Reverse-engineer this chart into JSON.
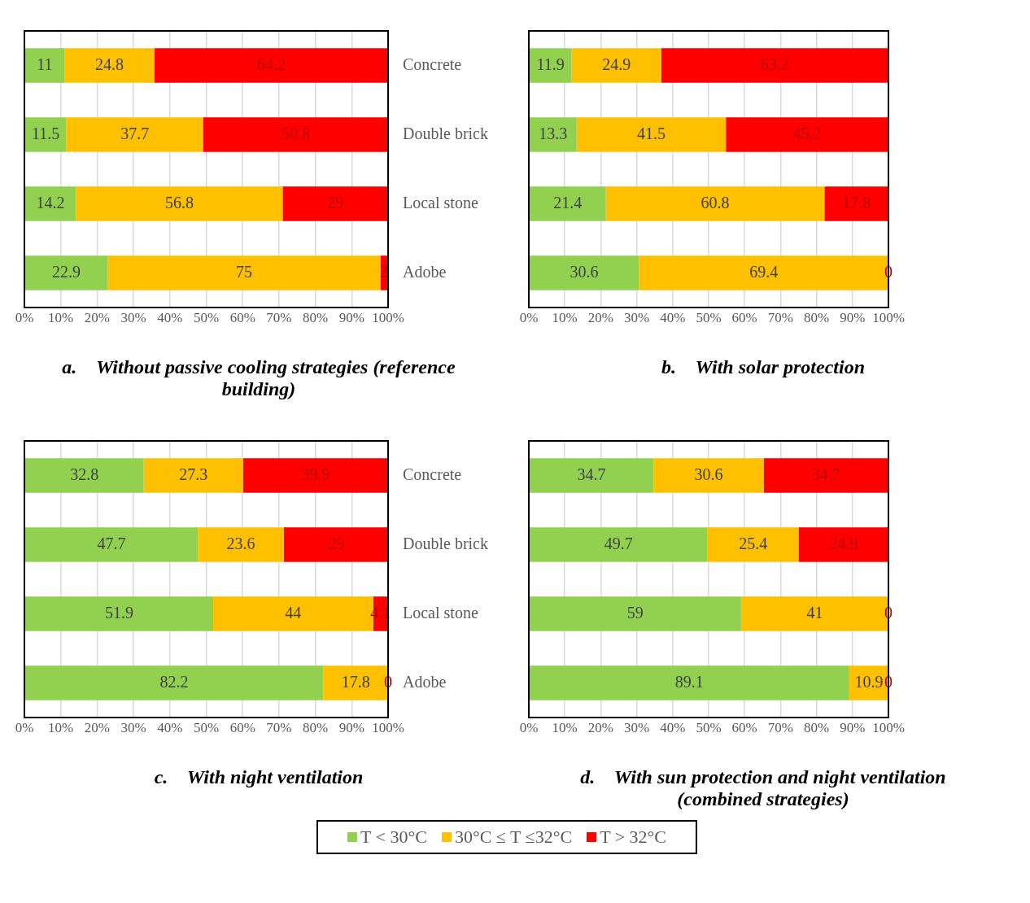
{
  "chart_data": [
    {
      "type": "bar",
      "orientation": "horizontal",
      "stacked": true,
      "title": "a.    Without passive cooling strategies (reference building)",
      "categories": [
        "Concrete",
        "Double brick",
        "Local stone",
        "Adobe"
      ],
      "series": [
        {
          "color": "#92d050",
          "values": [
            11,
            11.5,
            14.2,
            22.9
          ]
        },
        {
          "color": "#ffc000",
          "values": [
            24.8,
            37.7,
            56.8,
            75
          ]
        },
        {
          "color": "#ff0000",
          "values": [
            64.2,
            50.8,
            29,
            2
          ]
        }
      ],
      "xlim": [
        0,
        100
      ],
      "xticks": [
        {
          "value": 0,
          "label": "0%"
        },
        {
          "value": 10,
          "label": "10%"
        },
        {
          "value": 20,
          "label": "20%"
        },
        {
          "value": 30,
          "label": "30%"
        },
        {
          "value": 40,
          "label": "40%"
        },
        {
          "value": 50,
          "label": "50%"
        },
        {
          "value": 60,
          "label": "60%"
        },
        {
          "value": 70,
          "label": "70%"
        },
        {
          "value": 80,
          "label": "80%"
        },
        {
          "value": 90,
          "label": "90%"
        },
        {
          "value": 100,
          "label": "100%"
        }
      ],
      "grid": "x",
      "data_labels": true
    },
    {
      "type": "bar",
      "orientation": "horizontal",
      "stacked": true,
      "title": "b.    With solar protection",
      "categories": [
        null,
        null,
        null,
        null
      ],
      "series": [
        {
          "color": "#92d050",
          "values": [
            11.9,
            13.3,
            21.4,
            30.6
          ]
        },
        {
          "color": "#ffc000",
          "values": [
            24.9,
            41.5,
            60.8,
            69.4
          ]
        },
        {
          "color": "#ff0000",
          "values": [
            63.2,
            45.2,
            17.8,
            0
          ]
        }
      ],
      "xlim": [
        0,
        100
      ],
      "xticks": [
        {
          "value": 0,
          "label": "0%"
        },
        {
          "value": 10,
          "label": "10%"
        },
        {
          "value": 20,
          "label": "20%"
        },
        {
          "value": 30,
          "label": "30%"
        },
        {
          "value": 40,
          "label": "40%"
        },
        {
          "value": 50,
          "label": "50%"
        },
        {
          "value": 60,
          "label": "60%"
        },
        {
          "value": 70,
          "label": "70%"
        },
        {
          "value": 80,
          "label": "80%"
        },
        {
          "value": 90,
          "label": "90%"
        },
        {
          "value": 100,
          "label": "100%"
        }
      ],
      "grid": "x",
      "data_labels": true,
      "legend": false
    },
    {
      "type": "bar",
      "orientation": "horizontal",
      "stacked": true,
      "title": "c.    With night ventilation",
      "categories": [
        "Concrete",
        "Double brick",
        "Local stone",
        "Adobe"
      ],
      "series": [
        {
          "color": "#92d050",
          "values": [
            32.8,
            47.7,
            51.9,
            82.2
          ]
        },
        {
          "color": "#ffc000",
          "values": [
            27.3,
            23.6,
            44,
            17.8
          ]
        },
        {
          "color": "#ff0000",
          "values": [
            39.9,
            29,
            4.1,
            0
          ]
        }
      ],
      "xlim": [
        0,
        100
      ],
      "xticks": [
        {
          "value": 0,
          "label": "0%"
        },
        {
          "value": 10,
          "label": "10%"
        },
        {
          "value": 20,
          "label": "20%"
        },
        {
          "value": 30,
          "label": "30%"
        },
        {
          "value": 40,
          "label": "40%"
        },
        {
          "value": 50,
          "label": "50%"
        },
        {
          "value": 60,
          "label": "60%"
        },
        {
          "value": 70,
          "label": "70%"
        },
        {
          "value": 80,
          "label": "80%"
        },
        {
          "value": 90,
          "label": "90%"
        },
        {
          "value": 100,
          "label": "100%"
        }
      ],
      "grid": "x",
      "data_labels": true
    },
    {
      "type": "bar",
      "orientation": "horizontal",
      "stacked": true,
      "title": "d.    With sun protection and night ventilation (combined strategies)",
      "categories": [
        null,
        null,
        null,
        null
      ],
      "series": [
        {
          "name": "T < 30°C",
          "color": "#92d050",
          "values": [
            34.7,
            49.7,
            59,
            89.1
          ]
        },
        {
          "name": "30°C ≤  T  ≤32°C",
          "color": "#ffc000",
          "values": [
            30.6,
            25.4,
            41,
            10.9
          ]
        },
        {
          "name": "T > 32°C",
          "color": "#ff0000",
          "values": [
            34.7,
            24.9,
            0,
            0
          ]
        }
      ],
      "xlim": [
        0,
        100
      ],
      "xticks": [
        {
          "value": 0,
          "label": "0%"
        },
        {
          "value": 10,
          "label": "10%"
        },
        {
          "value": 20,
          "label": "20%"
        },
        {
          "value": 30,
          "label": "30%"
        },
        {
          "value": 40,
          "label": "40%"
        },
        {
          "value": 50,
          "label": "50%"
        },
        {
          "value": 60,
          "label": "60%"
        },
        {
          "value": 70,
          "label": "70%"
        },
        {
          "value": 80,
          "label": "80%"
        },
        {
          "value": 90,
          "label": "90%"
        },
        {
          "value": 100,
          "label": "100%"
        }
      ],
      "grid": "x",
      "data_labels": true,
      "legend": "bottom"
    }
  ]
}
